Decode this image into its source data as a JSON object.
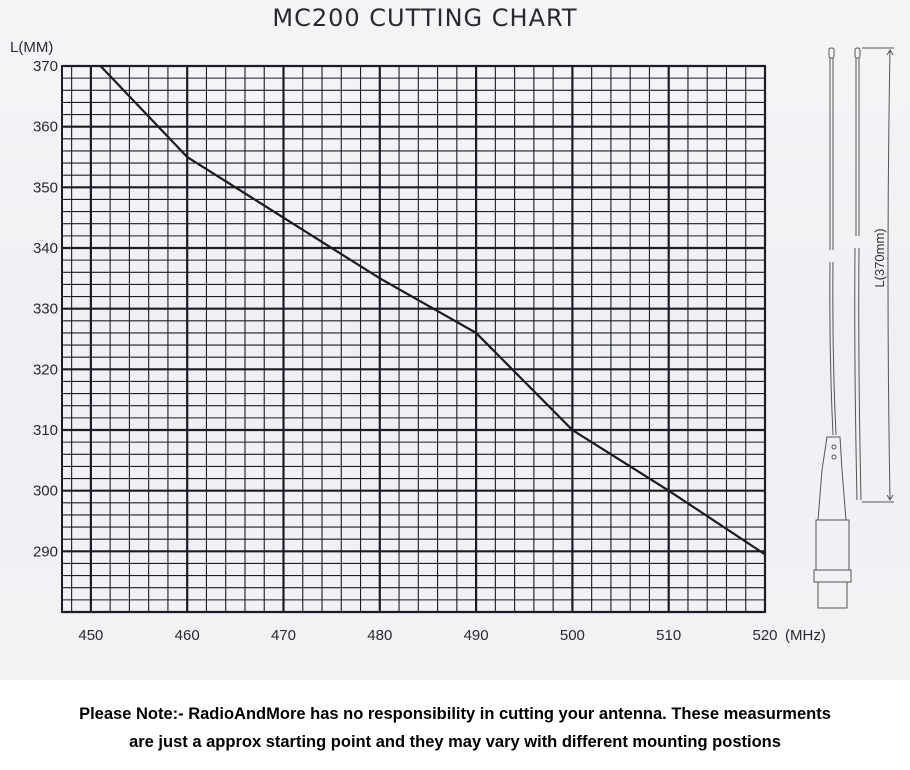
{
  "chart_data": {
    "type": "line",
    "title": "MC200  CUTTING  CHART",
    "ylabel": "L(MM)",
    "xunit_label": "(MHz)",
    "x_ticks": [
      450,
      460,
      470,
      480,
      490,
      500,
      510,
      520
    ],
    "y_ticks": [
      370,
      360,
      350,
      340,
      330,
      320,
      310,
      300,
      290
    ],
    "xlim": [
      447,
      520
    ],
    "ylim": [
      280,
      370
    ],
    "grid": true,
    "grid_minor_step_x": 2,
    "grid_minor_step_y": 2,
    "line_color": "#1a1a22",
    "x": [
      451,
      460,
      470,
      480,
      490,
      500,
      510,
      520
    ],
    "y": [
      370,
      355,
      345,
      335,
      326,
      310,
      300,
      289.5
    ]
  },
  "antenna_diagram": {
    "length_label": "L(370mm)"
  },
  "note": {
    "line1": "Please Note:- RadioAndMore has no responsibility in cutting your antenna. These measurments",
    "line2": "are just a approx starting point and they may vary with different mounting postions"
  }
}
